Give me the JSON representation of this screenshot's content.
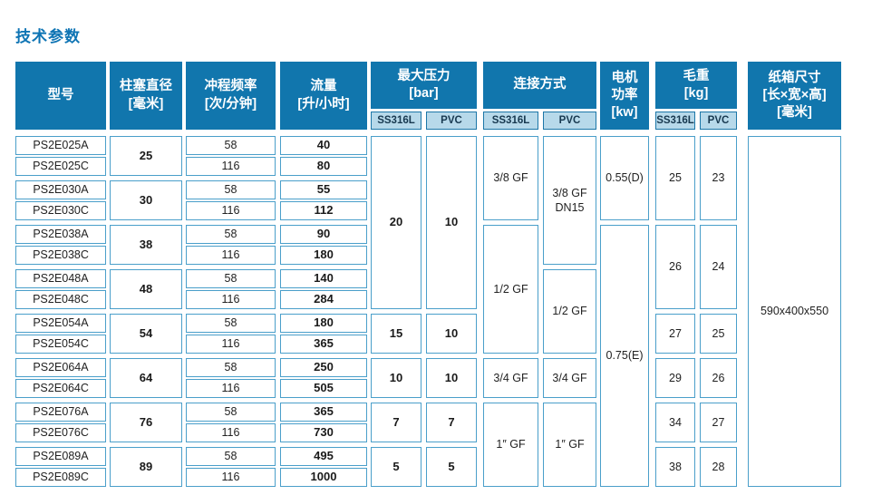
{
  "page_title": "技术参数",
  "colors": {
    "header_blue": "#1176ad",
    "title_blue": "#0e74b4",
    "subheader_fill": "#b7d9ea",
    "subheader_text": "#17384f",
    "cell_border": "#4a9fca",
    "cell_text": "#222222"
  },
  "table": {
    "groups": {
      "pressure": {
        "title": [
          "最大压力",
          "[bar]"
        ],
        "subs": [
          "SS316L",
          "PVC"
        ]
      },
      "connection": {
        "title": [
          "连接方式"
        ],
        "subs": [
          "SS316L",
          "PVC"
        ]
      },
      "weight": {
        "title": [
          "毛重",
          "[kg]"
        ],
        "subs": [
          "SS316L",
          "PVC"
        ]
      }
    },
    "columns": {
      "model": {
        "header": [
          "型号"
        ],
        "cells": [
          {
            "t": "PS2E025A"
          },
          {
            "t": "PS2E025C"
          },
          {
            "t": "PS2E030A"
          },
          {
            "t": "PS2E030C"
          },
          {
            "t": "PS2E038A"
          },
          {
            "t": "PS2E038C"
          },
          {
            "t": "PS2E048A"
          },
          {
            "t": "PS2E048C"
          },
          {
            "t": "PS2E054A"
          },
          {
            "t": "PS2E054C"
          },
          {
            "t": "PS2E064A"
          },
          {
            "t": "PS2E064C"
          },
          {
            "t": "PS2E076A"
          },
          {
            "t": "PS2E076C"
          },
          {
            "t": "PS2E089A"
          },
          {
            "t": "PS2E089C"
          }
        ]
      },
      "diameter": {
        "header": [
          "柱塞直径",
          "[毫米]"
        ],
        "bold": true,
        "cells": [
          {
            "t": "25",
            "span": 2
          },
          {
            "t": "30",
            "span": 2
          },
          {
            "t": "38",
            "span": 2
          },
          {
            "t": "48",
            "span": 2
          },
          {
            "t": "54",
            "span": 2
          },
          {
            "t": "64",
            "span": 2
          },
          {
            "t": "76",
            "span": 2
          },
          {
            "t": "89",
            "span": 2
          }
        ]
      },
      "frequency": {
        "header": [
          "冲程频率",
          "[次/分钟]"
        ],
        "cells": [
          {
            "t": "58"
          },
          {
            "t": "116"
          },
          {
            "t": "58"
          },
          {
            "t": "116"
          },
          {
            "t": "58"
          },
          {
            "t": "116"
          },
          {
            "t": "58"
          },
          {
            "t": "116"
          },
          {
            "t": "58"
          },
          {
            "t": "116"
          },
          {
            "t": "58"
          },
          {
            "t": "116"
          },
          {
            "t": "58"
          },
          {
            "t": "116"
          },
          {
            "t": "58"
          },
          {
            "t": "116"
          }
        ]
      },
      "flow": {
        "header": [
          "流量",
          "[升/小时]"
        ],
        "bold": true,
        "cells": [
          {
            "t": "40"
          },
          {
            "t": "80"
          },
          {
            "t": "55"
          },
          {
            "t": "112"
          },
          {
            "t": "90"
          },
          {
            "t": "180"
          },
          {
            "t": "140"
          },
          {
            "t": "284"
          },
          {
            "t": "180"
          },
          {
            "t": "365"
          },
          {
            "t": "250"
          },
          {
            "t": "505"
          },
          {
            "t": "365"
          },
          {
            "t": "730"
          },
          {
            "t": "495"
          },
          {
            "t": "1000"
          }
        ]
      },
      "pressure_ss316l": {
        "bold": true,
        "cells": [
          {
            "t": "20",
            "span": 8
          },
          {
            "t": "15",
            "span": 2
          },
          {
            "t": "10",
            "span": 2
          },
          {
            "t": "7",
            "span": 2
          },
          {
            "t": "5",
            "span": 2
          }
        ]
      },
      "pressure_pvc": {
        "bold": true,
        "cells": [
          {
            "t": "10",
            "span": 8
          },
          {
            "t": "10",
            "span": 2
          },
          {
            "t": "10",
            "span": 2
          },
          {
            "t": "7",
            "span": 2
          },
          {
            "t": "5",
            "span": 2
          }
        ]
      },
      "connection_ss316l": {
        "cells": [
          {
            "t": "3/8 GF",
            "span": 4
          },
          {
            "t": "1/2 GF",
            "span": 6
          },
          {
            "t": "3/4 GF",
            "span": 2
          },
          {
            "t": "1″ GF",
            "span": 4
          }
        ]
      },
      "connection_pvc": {
        "cells": [
          {
            "t": "3/8 GF\nDN15",
            "span": 6
          },
          {
            "t": "1/2 GF",
            "span": 4
          },
          {
            "t": "3/4 GF",
            "span": 2
          },
          {
            "t": "1″ GF",
            "span": 4
          }
        ]
      },
      "motor": {
        "header": [
          "电机",
          "功率",
          "[kw]"
        ],
        "cells": [
          {
            "t": "0.55(D)",
            "span": 4
          },
          {
            "t": "0.75(E)",
            "span": 12
          }
        ]
      },
      "weight_ss316l": {
        "cells": [
          {
            "t": "25",
            "span": 4
          },
          {
            "t": "26",
            "span": 4
          },
          {
            "t": "27",
            "span": 2
          },
          {
            "t": "29",
            "span": 2
          },
          {
            "t": "34",
            "span": 2
          },
          {
            "t": "38",
            "span": 2
          }
        ]
      },
      "weight_pvc": {
        "cells": [
          {
            "t": "23",
            "span": 4
          },
          {
            "t": "24",
            "span": 4
          },
          {
            "t": "25",
            "span": 2
          },
          {
            "t": "26",
            "span": 2
          },
          {
            "t": "27",
            "span": 2
          },
          {
            "t": "28",
            "span": 2
          }
        ]
      },
      "carton": {
        "header": [
          "纸箱尺寸",
          "[长×宽×高]",
          "[毫米]"
        ],
        "cells": [
          {
            "t": "590x400x550",
            "span": 16
          }
        ]
      }
    }
  }
}
